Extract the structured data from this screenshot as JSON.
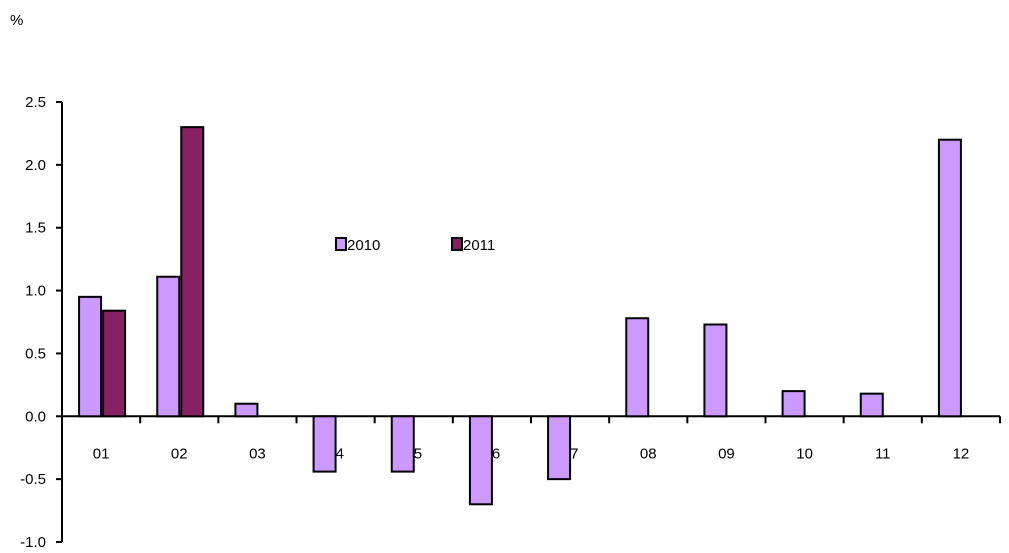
{
  "chart_data": {
    "type": "bar",
    "unit_label": "%",
    "categories": [
      "01",
      "02",
      "03",
      "04",
      "05",
      "06",
      "07",
      "08",
      "09",
      "10",
      "11",
      "12"
    ],
    "series": [
      {
        "name": "2010",
        "color": "#cc99ff",
        "values": [
          0.95,
          1.11,
          0.1,
          -0.44,
          -0.44,
          -0.7,
          -0.5,
          0.78,
          0.73,
          0.2,
          0.18,
          2.2
        ]
      },
      {
        "name": "2011",
        "color": "#862163",
        "values": [
          0.84,
          2.3,
          null,
          null,
          null,
          null,
          null,
          null,
          null,
          null,
          null,
          null
        ]
      }
    ],
    "y_ticks": [
      "2.5",
      "2.0",
      "1.5",
      "1.0",
      "0.5",
      "0.0",
      "-0.5",
      "-1.0"
    ],
    "ylim": [
      -1.0,
      2.5
    ],
    "grid": false,
    "legend_position": "inside-top-center"
  }
}
